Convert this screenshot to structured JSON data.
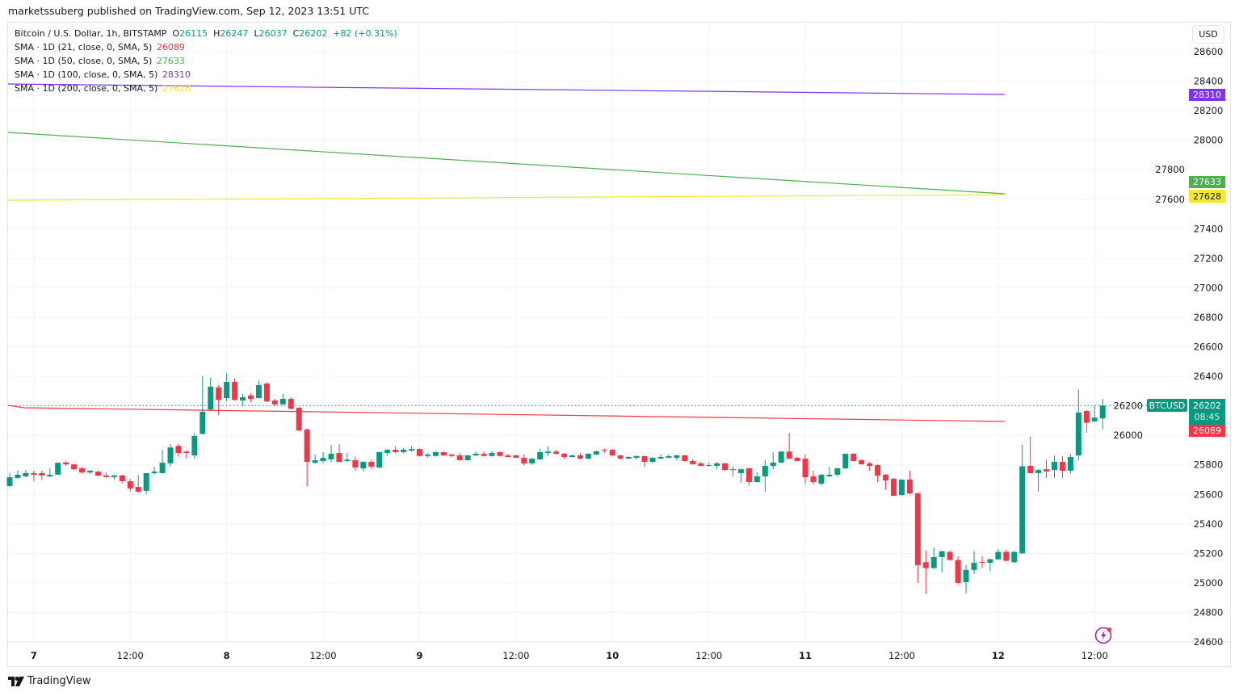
{
  "published": "marketssuberg published on TradingView.com, Sep 12, 2023 13:51 UTC",
  "legend": {
    "symbol": "Bitcoin / U.S. Dollar, 1h, BITSTAMP",
    "o_label": "O",
    "o": "26115",
    "h_label": "H",
    "h": "26247",
    "l_label": "L",
    "l": "26037",
    "c_label": "C",
    "c": "26202",
    "change": "+82 (+0.31%)",
    "sma": [
      {
        "label": "SMA · 1D (21, close, 0, SMA, 5)",
        "value": "26089",
        "color": "#f23645"
      },
      {
        "label": "SMA · 1D (50, close, 0, SMA, 5)",
        "value": "27633",
        "color": "#4caf50"
      },
      {
        "label": "SMA · 1D (100, close, 0, SMA, 5)",
        "value": "28310",
        "color": "#7e33f5"
      },
      {
        "label": "SMA · 1D (200, close, 0, SMA, 5)",
        "value": "27628",
        "color": "#f5e82a"
      }
    ]
  },
  "currency_button": "USD",
  "badges": {
    "symbol": "BTCUSD",
    "last_price": "26202",
    "countdown": "08:45",
    "sma21": "26089",
    "sma50": "27633",
    "sma100": "28310",
    "sma200": "27628"
  },
  "footer_brand": "TradingView",
  "colors": {
    "up": "#089981",
    "down": "#f23645",
    "grid": "#f0f3fa",
    "border": "#e0e3eb"
  },
  "chart_data": {
    "type": "candlestick",
    "title": "Bitcoin / U.S. Dollar, 1h, BITSTAMP",
    "interval": "1h",
    "x_start": "2023-09-06 21:00",
    "ylim": [
      24600,
      28600
    ],
    "y_ticks": [
      28600,
      28400,
      28200,
      28000,
      27800,
      27600,
      27400,
      27200,
      27000,
      26800,
      26600,
      26400,
      26200,
      26000,
      25800,
      25600,
      25400,
      25200,
      25000,
      24800,
      24600
    ],
    "x_ticks": [
      {
        "label": "7",
        "time": "2023-09-07 00:00",
        "bold": true
      },
      {
        "label": "12:00",
        "time": "2023-09-07 12:00"
      },
      {
        "label": "8",
        "time": "2023-09-08 00:00",
        "bold": true
      },
      {
        "label": "12:00",
        "time": "2023-09-08 12:00"
      },
      {
        "label": "9",
        "time": "2023-09-09 00:00",
        "bold": true
      },
      {
        "label": "12:00",
        "time": "2023-09-09 12:00"
      },
      {
        "label": "10",
        "time": "2023-09-10 00:00",
        "bold": true
      },
      {
        "label": "12:00",
        "time": "2023-09-10 12:00"
      },
      {
        "label": "11",
        "time": "2023-09-11 00:00",
        "bold": true
      },
      {
        "label": "12:00",
        "time": "2023-09-11 12:00"
      },
      {
        "label": "12",
        "time": "2023-09-12 00:00",
        "bold": true
      },
      {
        "label": "12:00",
        "time": "2023-09-12 12:00"
      }
    ],
    "ohlc_columns": [
      "open",
      "high",
      "low",
      "close"
    ],
    "ohlc": [
      [
        25656,
        25745,
        25650,
        25716
      ],
      [
        25711,
        25762,
        25705,
        25733
      ],
      [
        25722,
        25766,
        25717,
        25744
      ],
      [
        25744,
        25760,
        25690,
        25733
      ],
      [
        25744,
        25760,
        25695,
        25728
      ],
      [
        25722,
        25777,
        25717,
        25733
      ],
      [
        25733,
        25814,
        25733,
        25814
      ],
      [
        25816,
        25830,
        25793,
        25803
      ],
      [
        25803,
        25808,
        25765,
        25770
      ],
      [
        25776,
        25787,
        25742,
        25748
      ],
      [
        25748,
        25765,
        25738,
        25760
      ],
      [
        25754,
        25760,
        25722,
        25727
      ],
      [
        25728,
        25750,
        25712,
        25717
      ],
      [
        25717,
        25733,
        25700,
        25728
      ],
      [
        25728,
        25733,
        25672,
        25689
      ],
      [
        25689,
        25705,
        25618,
        25640
      ],
      [
        25650,
        25733,
        25613,
        25618
      ],
      [
        25624,
        25744,
        25601,
        25744
      ],
      [
        25744,
        25787,
        25733,
        25755
      ],
      [
        25744,
        25902,
        25740,
        25814
      ],
      [
        25810,
        25940,
        25790,
        25918
      ],
      [
        25929,
        25945,
        25855,
        25880
      ],
      [
        25890,
        25896,
        25840,
        25880
      ],
      [
        25864,
        26015,
        25840,
        25995
      ],
      [
        26010,
        26400,
        26005,
        26160
      ],
      [
        26175,
        26390,
        26170,
        26330
      ],
      [
        26325,
        26340,
        26137,
        26240
      ],
      [
        26252,
        26420,
        26230,
        26362
      ],
      [
        26362,
        26385,
        26235,
        26240
      ],
      [
        26236,
        26280,
        26200,
        26258
      ],
      [
        26270,
        26285,
        26225,
        26246
      ],
      [
        26252,
        26370,
        26250,
        26340
      ],
      [
        26350,
        26360,
        26225,
        26230
      ],
      [
        26236,
        26247,
        26200,
        26210
      ],
      [
        26210,
        26280,
        26205,
        26247
      ],
      [
        26247,
        26258,
        26175,
        26180
      ],
      [
        26187,
        26190,
        26030,
        26033
      ],
      [
        26040,
        26045,
        25654,
        25820
      ],
      [
        25814,
        25870,
        25805,
        25831
      ],
      [
        25826,
        25886,
        25811,
        25847
      ],
      [
        25837,
        25935,
        25820,
        25875
      ],
      [
        25880,
        25940,
        25815,
        25820
      ],
      [
        25826,
        25880,
        25820,
        25835
      ],
      [
        25831,
        25855,
        25760,
        25782
      ],
      [
        25776,
        25825,
        25755,
        25820
      ],
      [
        25820,
        25835,
        25770,
        25787
      ],
      [
        25782,
        25890,
        25776,
        25886
      ],
      [
        25880,
        25905,
        25860,
        25902
      ],
      [
        25902,
        25925,
        25880,
        25886
      ],
      [
        25886,
        25915,
        25880,
        25902
      ],
      [
        25897,
        25925,
        25890,
        25907
      ],
      [
        25907,
        25912,
        25855,
        25860
      ],
      [
        25860,
        25880,
        25850,
        25870
      ],
      [
        25860,
        25890,
        25855,
        25886
      ],
      [
        25886,
        25890,
        25860,
        25864
      ],
      [
        25870,
        25875,
        25850,
        25860
      ],
      [
        25864,
        25880,
        25828,
        25831
      ],
      [
        25831,
        25868,
        25828,
        25864
      ],
      [
        25864,
        25890,
        25860,
        25875
      ],
      [
        25875,
        25890,
        25856,
        25860
      ],
      [
        25860,
        25895,
        25856,
        25880
      ],
      [
        25886,
        25890,
        25856,
        25860
      ],
      [
        25864,
        25875,
        25850,
        25853
      ],
      [
        25864,
        25868,
        25845,
        25848
      ],
      [
        25848,
        25870,
        25795,
        25810
      ],
      [
        25810,
        25846,
        25800,
        25842
      ],
      [
        25837,
        25910,
        25834,
        25886
      ],
      [
        25880,
        25925,
        25860,
        25890
      ],
      [
        25890,
        25900,
        25870,
        25875
      ],
      [
        25875,
        25880,
        25840,
        25853
      ],
      [
        25853,
        25868,
        25850,
        25864
      ],
      [
        25864,
        25880,
        25838,
        25842
      ],
      [
        25842,
        25878,
        25838,
        25875
      ],
      [
        25870,
        25896,
        25866,
        25892
      ],
      [
        25902,
        25910,
        25880,
        25897
      ],
      [
        25902,
        25906,
        25858,
        25864
      ],
      [
        25864,
        25868,
        25836,
        25842
      ],
      [
        25842,
        25857,
        25838,
        25853
      ],
      [
        25848,
        25865,
        25835,
        25859
      ],
      [
        25859,
        25862,
        25787,
        25820
      ],
      [
        25820,
        25852,
        25810,
        25848
      ],
      [
        25842,
        25870,
        25840,
        25853
      ],
      [
        25848,
        25870,
        25845,
        25859
      ],
      [
        25848,
        25868,
        25830,
        25864
      ],
      [
        25864,
        25868,
        25822,
        25826
      ],
      [
        25826,
        25840,
        25800,
        25804
      ],
      [
        25810,
        25820,
        25790,
        25793
      ],
      [
        25793,
        25815,
        25790,
        25798
      ],
      [
        25793,
        25820,
        25770,
        25810
      ],
      [
        25810,
        25815,
        25760,
        25765
      ],
      [
        25770,
        25790,
        25720,
        25765
      ],
      [
        25744,
        25775,
        25676,
        25770
      ],
      [
        25776,
        25780,
        25660,
        25683
      ],
      [
        25683,
        25750,
        25680,
        25722
      ],
      [
        25722,
        25835,
        25617,
        25793
      ],
      [
        25793,
        25885,
        25770,
        25815
      ],
      [
        25815,
        25892,
        25812,
        25890
      ],
      [
        25890,
        26015,
        25838,
        25842
      ],
      [
        25848,
        25855,
        25822,
        25826
      ],
      [
        25842,
        25870,
        25668,
        25716
      ],
      [
        25722,
        25760,
        25666,
        25683
      ],
      [
        25672,
        25737,
        25660,
        25733
      ],
      [
        25722,
        25786,
        25718,
        25733
      ],
      [
        25733,
        25780,
        25720,
        25776
      ],
      [
        25776,
        25878,
        25772,
        25875
      ],
      [
        25875,
        25880,
        25822,
        25826
      ],
      [
        25831,
        25840,
        25800,
        25804
      ],
      [
        25810,
        25820,
        25760,
        25793
      ],
      [
        25798,
        25802,
        25683,
        25727
      ],
      [
        25733,
        25738,
        25630,
        25694
      ],
      [
        25705,
        25712,
        25590,
        25590
      ],
      [
        25595,
        25700,
        25592,
        25700
      ],
      [
        25700,
        25760,
        25600,
        25606
      ],
      [
        25606,
        25615,
        25000,
        25120
      ],
      [
        25140,
        25220,
        24925,
        25100
      ],
      [
        25100,
        25240,
        25095,
        25175
      ],
      [
        25175,
        25218,
        25070,
        25214
      ],
      [
        25210,
        25220,
        25150,
        25155
      ],
      [
        25155,
        25180,
        24990,
        25000
      ],
      [
        25005,
        25120,
        24930,
        25088
      ],
      [
        25088,
        25215,
        25060,
        25136
      ],
      [
        25142,
        25180,
        25100,
        25136
      ],
      [
        25136,
        25165,
        25080,
        25160
      ],
      [
        25160,
        25230,
        25155,
        25210
      ],
      [
        25210,
        25225,
        25145,
        25150
      ],
      [
        25140,
        25215,
        25135,
        25210
      ],
      [
        25200,
        25935,
        25198,
        25790
      ],
      [
        25793,
        25990,
        25740,
        25744
      ],
      [
        25744,
        25770,
        25620,
        25765
      ],
      [
        25770,
        25835,
        25710,
        25755
      ],
      [
        25765,
        25865,
        25710,
        25820
      ],
      [
        25820,
        25860,
        25710,
        25760
      ],
      [
        25760,
        25875,
        25740,
        25853
      ],
      [
        25864,
        26310,
        25830,
        26155
      ],
      [
        26165,
        26175,
        26018,
        26085
      ],
      [
        26095,
        26200,
        26090,
        26120
      ],
      [
        26115,
        26247,
        26037,
        26202
      ]
    ],
    "series": [
      {
        "name": "SMA · 1D (21, close, 0, SMA, 5)",
        "color": "#f23645",
        "points": [
          {
            "time": "2023-09-06 21:00",
            "value": 26203
          },
          {
            "time": "2023-09-06 23:00",
            "value": 26187
          },
          {
            "time": "2023-09-12 01:00",
            "value": 26094
          }
        ]
      },
      {
        "name": "SMA · 1D (50, close, 0, SMA, 5)",
        "color": "#4caf50",
        "points": [
          {
            "time": "2023-09-06 21:00",
            "value": 28053
          },
          {
            "time": "2023-09-12 01:00",
            "value": 27637
          }
        ]
      },
      {
        "name": "SMA · 1D (100, close, 0, SMA, 5)",
        "color": "#7e33f5",
        "points": [
          {
            "time": "2023-09-06 21:00",
            "value": 28381
          },
          {
            "time": "2023-09-12 01:00",
            "value": 28310
          }
        ]
      },
      {
        "name": "SMA · 1D (200, close, 0, SMA, 5)",
        "color": "#f5e82a",
        "points": [
          {
            "time": "2023-09-06 21:00",
            "value": 27593
          },
          {
            "time": "2023-09-12 01:00",
            "value": 27630
          }
        ]
      }
    ],
    "last_price": 26202,
    "grid": true
  }
}
